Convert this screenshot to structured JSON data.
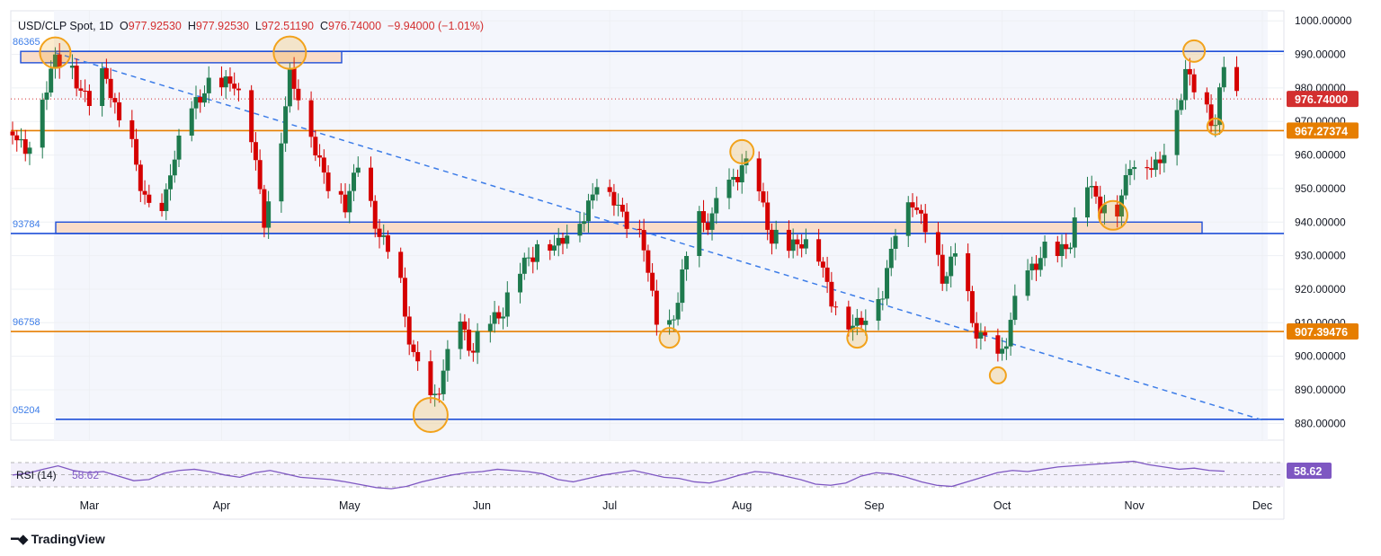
{
  "header": {
    "symbol": "USD/CLP Spot, 1D",
    "o_label": "O",
    "o": "977.92530",
    "h_label": "H",
    "h": "977.92530",
    "l_label": "L",
    "l": "972.51190",
    "c_label": "C",
    "c": "976.74000",
    "change": "−9.94000 (−1.01%)"
  },
  "brand": {
    "name": "TradingView",
    "logo_icon": "tradingview-logo-icon"
  },
  "colors": {
    "up": "#1e7a4e",
    "down": "#d50000",
    "hline_blue": "#1f4fd8",
    "hline_orange": "#e67e00",
    "trend": "#3d7de8",
    "zone_fill": "#f9dcc8",
    "circle": "#f2a21b",
    "rsi": "#7e57c2",
    "price_tag": "#d32f2f",
    "level_tag": "#e67e00"
  },
  "chart_data": {
    "type": "candlestick",
    "symbol": "USD/CLP",
    "timeframe": "1D",
    "ylim": [
      875,
      1003
    ],
    "y_ticks": [
      1000,
      990,
      980,
      970,
      960,
      950,
      940,
      930,
      920,
      910,
      900,
      890,
      880
    ],
    "y_tick_labels": [
      "1000.00000",
      "990.00000",
      "980.00000",
      "970.00000",
      "960.00000",
      "950.00000",
      "940.00000",
      "930.00000",
      "920.00000",
      "910.00000",
      "900.00000",
      "890.00000",
      "880.00000"
    ],
    "x_labels": [
      "Mar",
      "Apr",
      "May",
      "Jun",
      "Jul",
      "Aug",
      "Sep",
      "Oct",
      "Nov",
      "Dec"
    ],
    "last_price": "976.74000",
    "levels": [
      {
        "value": 990.9,
        "color": "blue",
        "left_label": "86365"
      },
      {
        "value": 967.27374,
        "color": "orange",
        "label": "967.27374"
      },
      {
        "value": 936.6,
        "color": "blue",
        "left_label": "93784"
      },
      {
        "value": 907.39476,
        "color": "orange",
        "label": "907.39476",
        "left_label": "96758"
      },
      {
        "value": 881.2,
        "color": "blue",
        "left_label": "05204"
      }
    ],
    "zones": [
      {
        "from": 987.5,
        "to": 990.9,
        "start": "Feb 20",
        "end": "Apr 28"
      },
      {
        "from": 936.6,
        "to": 940.0,
        "start": "Feb 15",
        "end": "Nov 20"
      }
    ],
    "trendline": {
      "from": {
        "date": "Feb 22",
        "value": 990.5
      },
      "to": {
        "date": "Dec 1",
        "value": 881.0
      }
    },
    "price_path": [
      {
        "date": "Feb 12",
        "close": 967
      },
      {
        "date": "Feb 15",
        "close": 962
      },
      {
        "date": "Feb 18",
        "close": 972
      },
      {
        "date": "Feb 22",
        "close": 990
      },
      {
        "date": "Feb 26",
        "close": 985
      },
      {
        "date": "Mar 1",
        "close": 976
      },
      {
        "date": "Mar 5",
        "close": 985
      },
      {
        "date": "Mar 8",
        "close": 970
      },
      {
        "date": "Mar 12",
        "close": 958
      },
      {
        "date": "Mar 15",
        "close": 944
      },
      {
        "date": "Mar 18",
        "close": 940
      },
      {
        "date": "Mar 20",
        "close": 958
      },
      {
        "date": "Mar 25",
        "close": 972
      },
      {
        "date": "Mar 28",
        "close": 982
      },
      {
        "date": "Apr 1",
        "close": 980
      },
      {
        "date": "Apr 4",
        "close": 984
      },
      {
        "date": "Apr 8",
        "close": 965
      },
      {
        "date": "Apr 11",
        "close": 942
      },
      {
        "date": "Apr 15",
        "close": 965
      },
      {
        "date": "Apr 17",
        "close": 985
      },
      {
        "date": "Apr 19",
        "close": 979
      },
      {
        "date": "Apr 23",
        "close": 962
      },
      {
        "date": "Apr 26",
        "close": 952
      },
      {
        "date": "Apr 30",
        "close": 946
      },
      {
        "date": "May 3",
        "close": 958
      },
      {
        "date": "May 6",
        "close": 944
      },
      {
        "date": "May 9",
        "close": 935
      },
      {
        "date": "May 13",
        "close": 920
      },
      {
        "date": "May 16",
        "close": 901
      },
      {
        "date": "May 20",
        "close": 885
      },
      {
        "date": "May 23",
        "close": 897
      },
      {
        "date": "May 27",
        "close": 908
      },
      {
        "date": "May 30",
        "close": 904
      },
      {
        "date": "Jun 3",
        "close": 909
      },
      {
        "date": "Jun 7",
        "close": 918
      },
      {
        "date": "Jun 11",
        "close": 928
      },
      {
        "date": "Jun 14",
        "close": 934
      },
      {
        "date": "Jun 18",
        "close": 933
      },
      {
        "date": "Jun 21",
        "close": 938
      },
      {
        "date": "Jun 25",
        "close": 942
      },
      {
        "date": "Jun 28",
        "close": 953
      },
      {
        "date": "Jul 2",
        "close": 948
      },
      {
        "date": "Jul 5",
        "close": 940
      },
      {
        "date": "Jul 9",
        "close": 935
      },
      {
        "date": "Jul 12",
        "close": 910
      },
      {
        "date": "Jul 15",
        "close": 908
      },
      {
        "date": "Jul 18",
        "close": 925
      },
      {
        "date": "Jul 22",
        "close": 940
      },
      {
        "date": "Jul 25",
        "close": 943
      },
      {
        "date": "Jul 29",
        "close": 950
      },
      {
        "date": "Aug 1",
        "close": 959
      },
      {
        "date": "Aug 5",
        "close": 948
      },
      {
        "date": "Aug 8",
        "close": 937
      },
      {
        "date": "Aug 12",
        "close": 932
      },
      {
        "date": "Aug 15",
        "close": 936
      },
      {
        "date": "Aug 19",
        "close": 930
      },
      {
        "date": "Aug 22",
        "close": 918
      },
      {
        "date": "Aug 26",
        "close": 910
      },
      {
        "date": "Aug 29",
        "close": 911
      },
      {
        "date": "Sep 3",
        "close": 920
      },
      {
        "date": "Sep 6",
        "close": 938
      },
      {
        "date": "Sep 10",
        "close": 948
      },
      {
        "date": "Sep 13",
        "close": 938
      },
      {
        "date": "Sep 17",
        "close": 925
      },
      {
        "date": "Sep 20",
        "close": 930
      },
      {
        "date": "Sep 24",
        "close": 912
      },
      {
        "date": "Sep 27",
        "close": 904
      },
      {
        "date": "Sep 30",
        "close": 898
      },
      {
        "date": "Oct 3",
        "close": 912
      },
      {
        "date": "Oct 7",
        "close": 924
      },
      {
        "date": "Oct 10",
        "close": 932
      },
      {
        "date": "Oct 14",
        "close": 930
      },
      {
        "date": "Oct 17",
        "close": 936
      },
      {
        "date": "Oct 21",
        "close": 952
      },
      {
        "date": "Oct 24",
        "close": 946
      },
      {
        "date": "Oct 28",
        "close": 944
      },
      {
        "date": "Oct 31",
        "close": 958
      },
      {
        "date": "Nov 4",
        "close": 958
      },
      {
        "date": "Nov 7",
        "close": 958
      },
      {
        "date": "Nov 11",
        "close": 974
      },
      {
        "date": "Nov 13",
        "close": 986
      },
      {
        "date": "Nov 15",
        "close": 980
      },
      {
        "date": "Nov 18",
        "close": 974
      },
      {
        "date": "Nov 20",
        "close": 971
      },
      {
        "date": "Nov 22",
        "close": 986
      },
      {
        "date": "Nov 25",
        "close": 976.74
      }
    ],
    "highlight_points": [
      {
        "date": "Feb 22",
        "value": 990.5
      },
      {
        "date": "Apr 17",
        "value": 990.5
      },
      {
        "date": "May 20",
        "value": 882.5
      },
      {
        "date": "Jul 15",
        "value": 905.5
      },
      {
        "date": "Aug 1",
        "value": 961.0
      },
      {
        "date": "Aug 28",
        "value": 905.5
      },
      {
        "date": "Sep 30",
        "value": 894.3
      },
      {
        "date": "Oct 27",
        "value": 942.0
      },
      {
        "date": "Nov 15",
        "value": 991.0
      },
      {
        "date": "Nov 20",
        "value": 968.5
      }
    ],
    "rsi": {
      "label": "RSI (14)",
      "value": "58.62",
      "series": [
        52,
        55,
        62,
        68,
        60,
        56,
        58,
        50,
        42,
        44,
        55,
        60,
        62,
        58,
        52,
        48,
        56,
        60,
        54,
        48,
        46,
        44,
        40,
        35,
        30,
        28,
        32,
        40,
        46,
        52,
        56,
        58,
        62,
        60,
        58,
        54,
        44,
        40,
        46,
        52,
        56,
        60,
        54,
        48,
        46,
        40,
        38,
        44,
        52,
        58,
        56,
        50,
        44,
        36,
        34,
        38,
        50,
        56,
        54,
        48,
        40,
        34,
        32,
        40,
        48,
        56,
        60,
        58,
        62,
        66,
        68,
        70,
        72,
        74,
        76,
        70,
        66,
        62,
        64,
        60,
        58.62
      ]
    }
  }
}
